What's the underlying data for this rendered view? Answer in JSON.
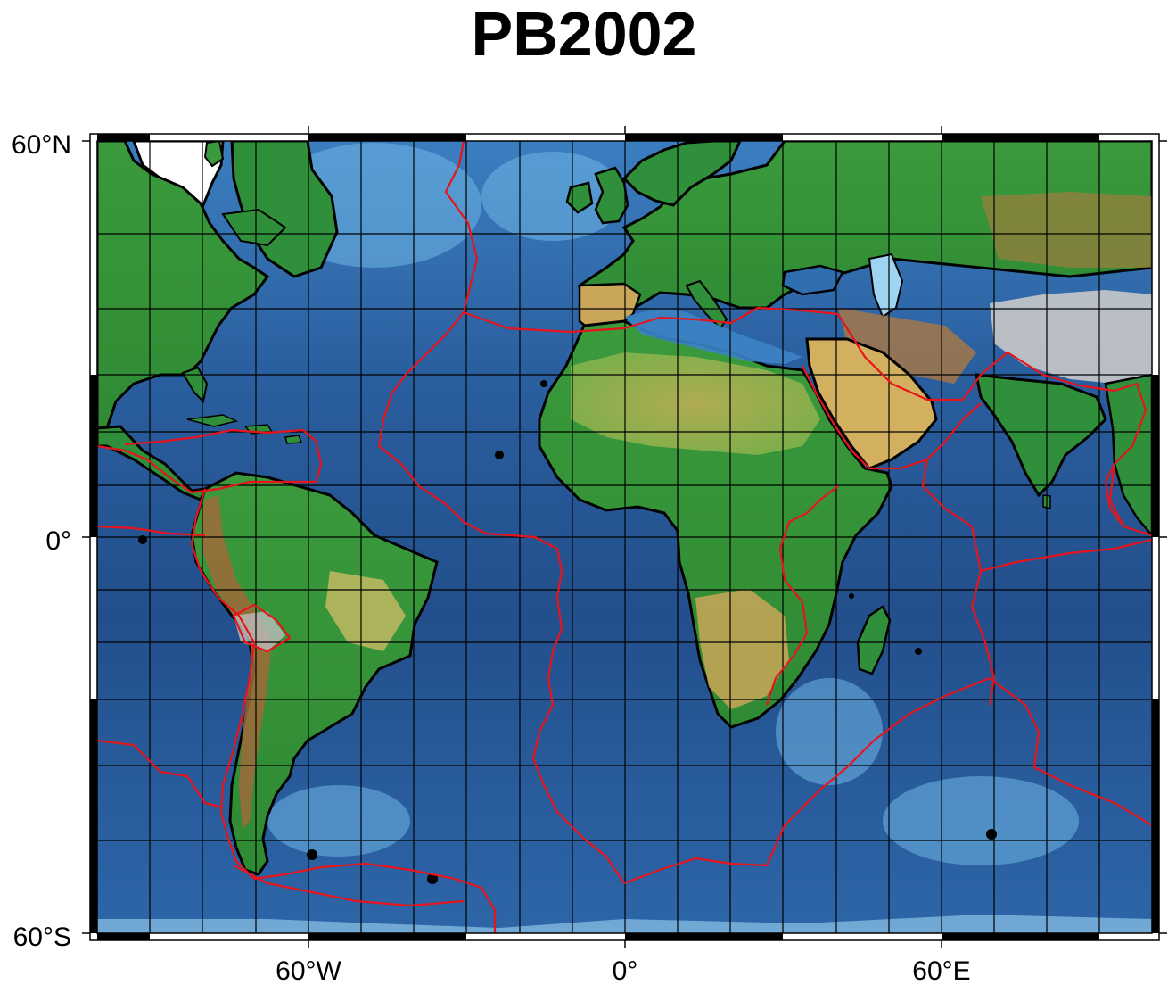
{
  "map": {
    "title": "PB2002",
    "lat_labels": {
      "top": "60°N",
      "mid": "0°",
      "bottom": "60°S"
    },
    "lon_labels": {
      "left": "60°W",
      "center": "0°",
      "right": "60°E"
    },
    "layers": [
      "topography-relief",
      "coastlines",
      "plate-boundaries",
      "graticule"
    ],
    "colors": {
      "ocean_deep": "#1f4a86",
      "ocean_mid": "#2f6fb0",
      "ocean_shallow": "#7fc6ee",
      "land_low": "#2f8f3a",
      "land_mid": "#e6cc7a",
      "land_high": "#9a5a2c",
      "land_peak": "#bdbdbd",
      "ice": "#ffffff",
      "plate_boundary": "#e8141b",
      "coastline": "#000000"
    }
  }
}
